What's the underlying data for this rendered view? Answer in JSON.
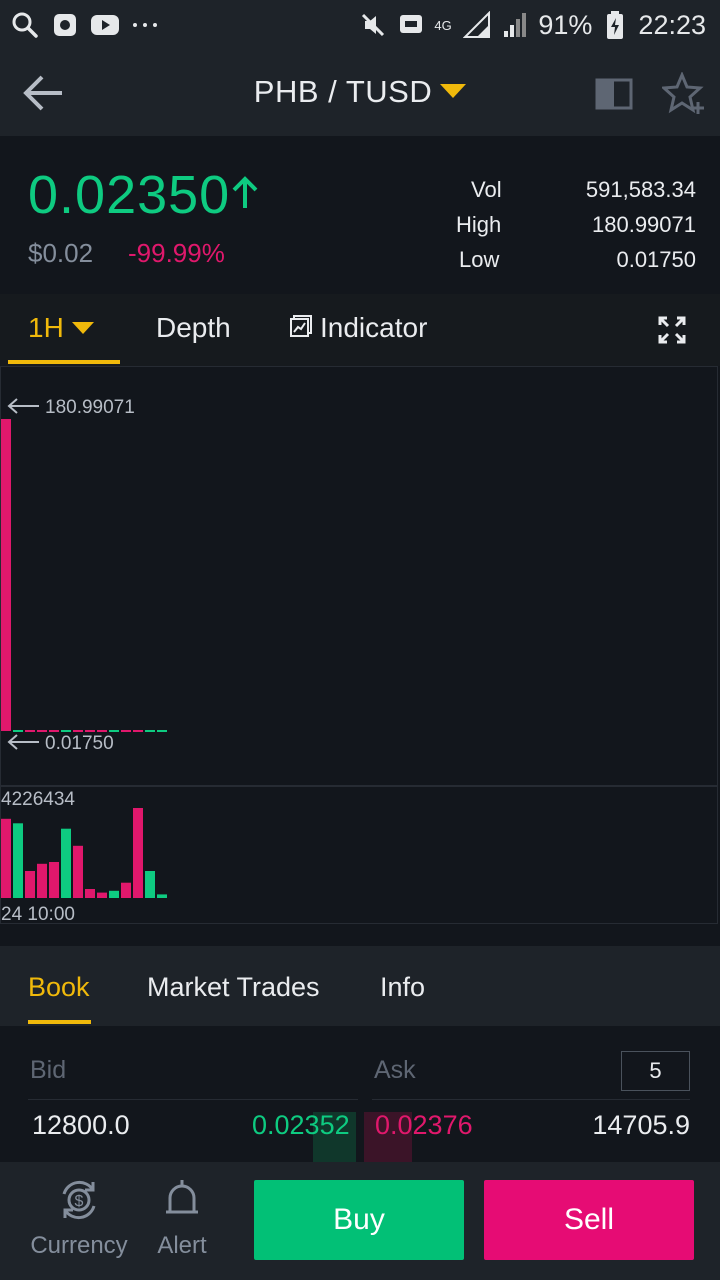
{
  "status_bar": {
    "battery": "91%",
    "time": "22:23",
    "network": "4G"
  },
  "header": {
    "pair": "PHB / TUSD"
  },
  "ticker": {
    "last_price": "0.02350",
    "fiat_price": "$0.02",
    "change": "-99.99%",
    "vol_label": "Vol",
    "vol_value": "591,583.34",
    "high_label": "High",
    "high_value": "180.99071",
    "low_label": "Low",
    "low_value": "0.01750"
  },
  "chart_tabs": {
    "interval": "1H",
    "depth": "Depth",
    "indicator": "Indicator"
  },
  "chart_data": {
    "type": "bar",
    "price_high_label": "180.99071",
    "price_low_label": "0.01750",
    "volume_max_label": "4226434",
    "x_label": "24 10:00",
    "volume_series": {
      "values": [
        0.88,
        0.83,
        0.3,
        0.38,
        0.4,
        0.77,
        0.58,
        0.1,
        0.06,
        0.08,
        0.17,
        1.0,
        0.3,
        0.04
      ],
      "directions": [
        "down",
        "up",
        "down",
        "down",
        "down",
        "up",
        "down",
        "down",
        "down",
        "up",
        "down",
        "down",
        "up",
        "up"
      ]
    },
    "colors": {
      "up": "#0ecb81",
      "down": "#e0186c"
    }
  },
  "book_tabs": {
    "book": "Book",
    "market_trades": "Market Trades",
    "info": "Info"
  },
  "order_book": {
    "bid_header": "Bid",
    "ask_header": "Ask",
    "depth_level": "5",
    "rows": [
      {
        "bid_qty": "12800.0",
        "bid_price": "0.02352",
        "ask_price": "0.02376",
        "ask_qty": "14705.9"
      }
    ]
  },
  "bottom_nav": {
    "currency": "Currency",
    "alert": "Alert",
    "buy": "Buy",
    "sell": "Sell"
  }
}
